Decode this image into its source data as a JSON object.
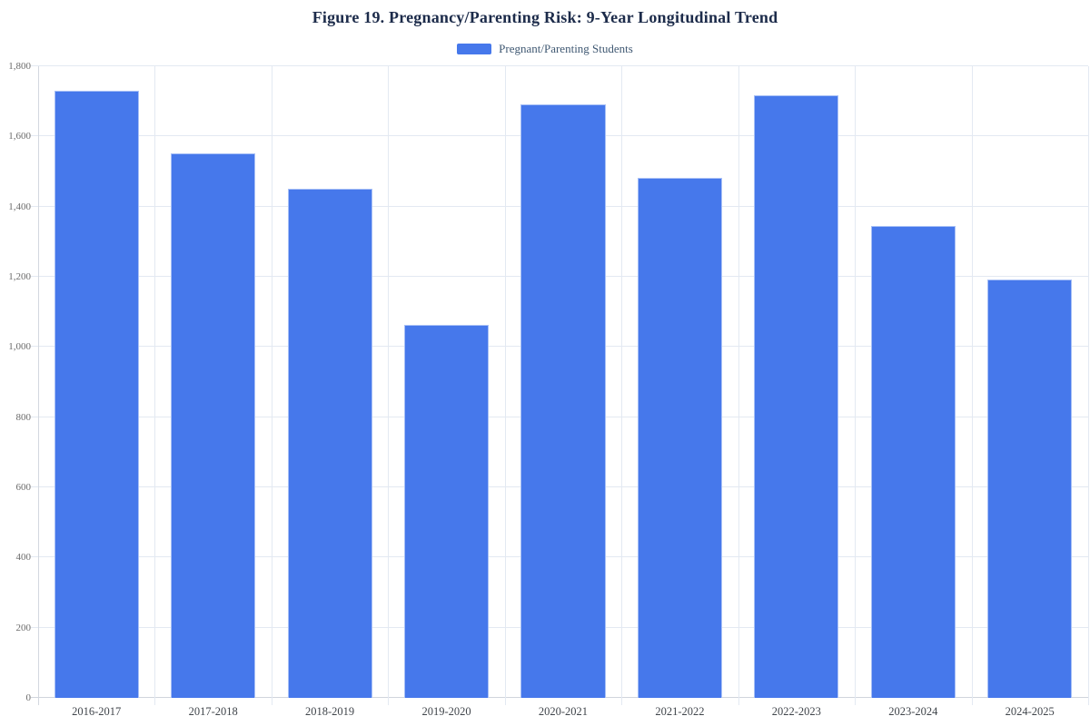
{
  "chart_data": {
    "type": "bar",
    "title": "Figure 19. Pregnancy/Parenting Risk: 9-Year Longitudinal Trend",
    "categories": [
      "2016-2017",
      "2017-2018",
      "2018-2019",
      "2019-2020",
      "2020-2021",
      "2021-2022",
      "2022-2023",
      "2023-2024",
      "2024-2025"
    ],
    "series": [
      {
        "name": "Pregnant/Parenting Students",
        "values": [
          1730,
          1552,
          1450,
          1064,
          1692,
          1482,
          1718,
          1344,
          1191
        ]
      }
    ],
    "xlabel": "",
    "ylabel": "",
    "ylim": [
      0,
      1800
    ],
    "ytick_interval": 200,
    "ytick_labels": [
      "0",
      "200",
      "400",
      "600",
      "800",
      "1,000",
      "1,200",
      "1,400",
      "1,600",
      "1,800"
    ],
    "grid": true,
    "legend_position": "top",
    "colors": {
      "bar_fill": "#4678EB",
      "bar_edge": "#B2C8F7",
      "gridline": "#E3E9F2",
      "axis_line": "#D0D5DC",
      "title_text": "#1C2B4A",
      "legend_text": "#3F5872",
      "y_tick_text": "#6B6B6B",
      "x_tick_text": "#40454B",
      "background": "#FFFFFF"
    }
  }
}
